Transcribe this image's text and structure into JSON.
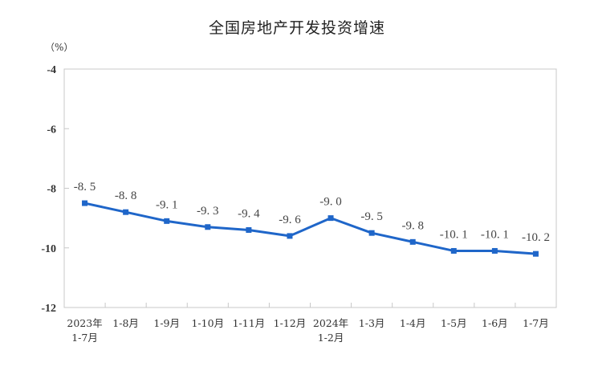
{
  "chart_data": {
    "type": "line",
    "title": "全国房地产开发投资增速",
    "ylabel": "（%）",
    "xlabel": "",
    "ylim": [
      -12,
      -4
    ],
    "yticks": [
      -4,
      -6,
      -8,
      -10,
      -12
    ],
    "grid": false,
    "legend": null,
    "categories": [
      [
        "2023年",
        "1-7月"
      ],
      [
        "1-8月"
      ],
      [
        "1-9月"
      ],
      [
        "1-10月"
      ],
      [
        "1-11月"
      ],
      [
        "1-12月"
      ],
      [
        "2024年",
        "1-2月"
      ],
      [
        "1-3月"
      ],
      [
        "1-4月"
      ],
      [
        "1-5月"
      ],
      [
        "1-6月"
      ],
      [
        "1-7月"
      ]
    ],
    "series": [
      {
        "name": "全国房地产开发投资增速",
        "values": [
          -8.5,
          -8.8,
          -9.1,
          -9.3,
          -9.4,
          -9.6,
          -9.0,
          -9.5,
          -9.8,
          -10.1,
          -10.1,
          -10.2
        ],
        "labels": [
          "-8. 5",
          "-8. 8",
          "-9. 1",
          "-9. 3",
          "-9. 4",
          "-9. 6",
          "-9. 0",
          "-9. 5",
          "-9. 8",
          "-10. 1",
          "-10. 1",
          "-10. 2"
        ],
        "color": "#1f66c9"
      }
    ]
  }
}
